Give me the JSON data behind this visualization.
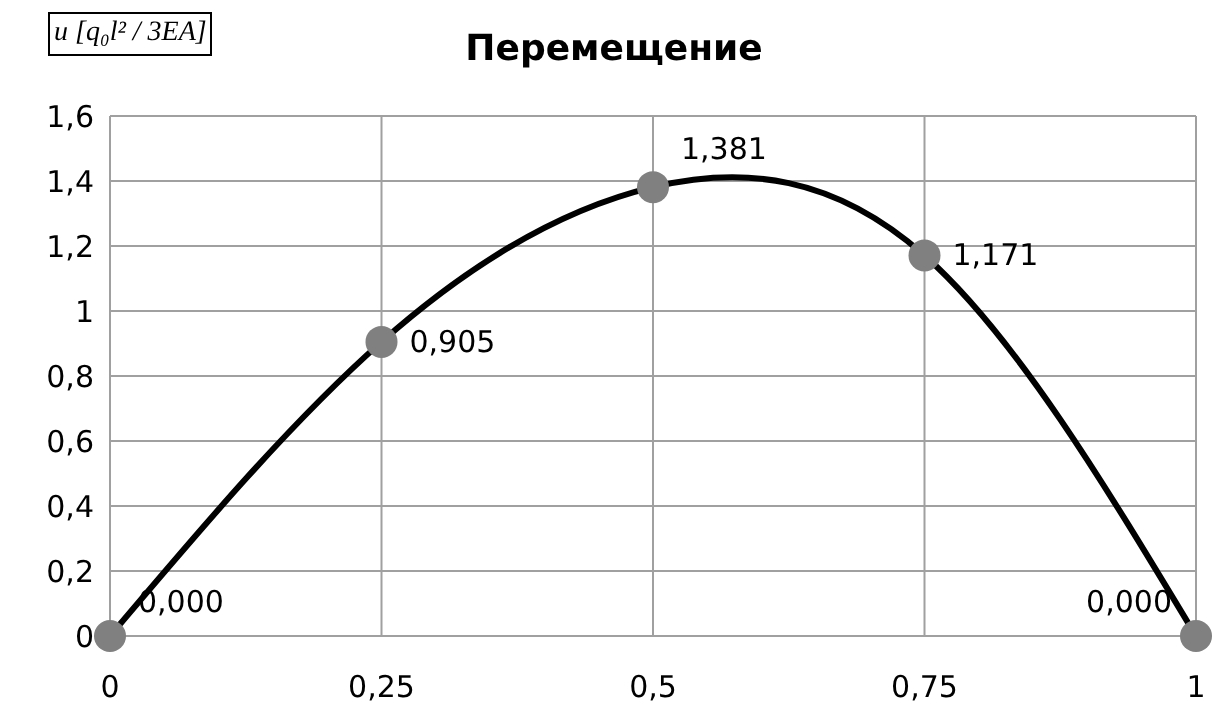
{
  "chart_data": {
    "type": "line",
    "title": "Перемещение",
    "ylabel": "u [q₀l² / 3EA]",
    "x": [
      0,
      0.25,
      0.5,
      0.75,
      1
    ],
    "series": [
      {
        "color": "#000000",
        "colors": [
          "#808080",
          "#808080",
          "#808080",
          "#808080",
          "#808080"
        ],
        "values": [
          0,
          0.905,
          1.381,
          1.171,
          0
        ],
        "value_labels": [
          "0,000",
          "0,905",
          "1,381",
          "1,171",
          "0,000"
        ]
      }
    ],
    "xlim": [
      0,
      1
    ],
    "xticks": [
      0,
      {
        "value": 0.25,
        "label": "0,25"
      },
      {
        "value": 0.5,
        "label": "0,5"
      },
      {
        "value": 0.75,
        "label": "0,75"
      },
      1
    ],
    "ylim": [
      0,
      1.6
    ],
    "yticks": [
      0,
      {
        "value": 0.2,
        "label": "0,2"
      },
      {
        "value": 0.4,
        "label": "0,4"
      },
      {
        "value": 0.6,
        "label": "0,6"
      },
      {
        "value": 0.8,
        "label": "0,8"
      },
      1,
      {
        "value": 1.2,
        "label": "1,2"
      },
      {
        "value": 1.4,
        "label": "1,4"
      },
      {
        "value": 1.6,
        "label": "1,6"
      }
    ],
    "grid": true,
    "marker": "circle",
    "line_style": "solid"
  }
}
